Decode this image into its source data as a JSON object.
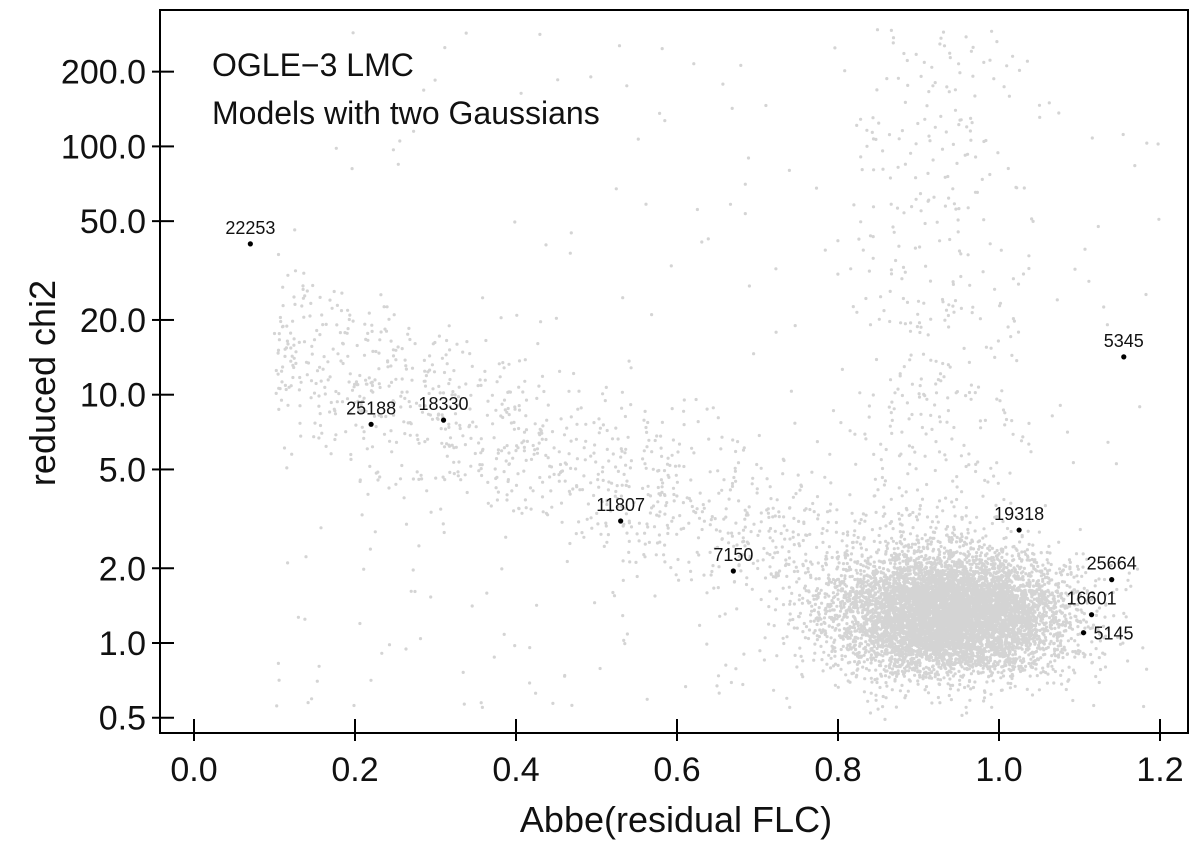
{
  "chart_data": {
    "type": "scatter",
    "title": "",
    "annotations": [
      "OGLE−3 LMC",
      "Models with two Gaussians"
    ],
    "xlabel": "Abbe(residual FLC)",
    "ylabel": "reduced chi2",
    "xlim": [
      -0.05,
      1.25
    ],
    "ylim": [
      0.45,
      400
    ],
    "yscale": "log",
    "xticks": [
      0.0,
      0.2,
      0.4,
      0.6,
      0.8,
      1.0,
      1.2
    ],
    "xtick_labels": [
      "0.0",
      "0.2",
      "0.4",
      "0.6",
      "0.8",
      "1.0",
      "1.2"
    ],
    "yticks": [
      0.5,
      1.0,
      2.0,
      5.0,
      10.0,
      20.0,
      50.0,
      100.0,
      200.0
    ],
    "ytick_labels": [
      "0.5",
      "1.0",
      "2.0",
      "5.0",
      "10.0",
      "20.0",
      "50.0",
      "100.0",
      "200.0"
    ],
    "grid": false,
    "colors": {
      "highlight": "#000000",
      "cloud": "#3a3a3a"
    },
    "highlighted_points": [
      {
        "label": "22253",
        "x": 0.07,
        "y": 40.5
      },
      {
        "label": "25188",
        "x": 0.22,
        "y": 7.6
      },
      {
        "label": "18330",
        "x": 0.31,
        "y": 7.9
      },
      {
        "label": "11807",
        "x": 0.53,
        "y": 3.1
      },
      {
        "label": "7150",
        "x": 0.67,
        "y": 1.95
      },
      {
        "label": "19318",
        "x": 1.025,
        "y": 2.85
      },
      {
        "label": "5345",
        "x": 1.155,
        "y": 14.2
      },
      {
        "label": "25664",
        "x": 1.14,
        "y": 1.8
      },
      {
        "label": "16601",
        "x": 1.115,
        "y": 1.3
      },
      {
        "label": "5145",
        "x": 1.105,
        "y": 1.1
      }
    ],
    "point_cloud": {
      "description_components": [
        {
          "x_center": 0.94,
          "x_spread": 0.07,
          "y_center": 1.3,
          "y_log_spread": 0.12,
          "weight": 0.78
        },
        {
          "x_from": 0.1,
          "x_to": 0.9,
          "y_at_x_from": 15.0,
          "y_at_x_to": 1.5,
          "y_log_spread": 0.18,
          "weight": 0.12
        },
        {
          "x_center": 0.93,
          "x_spread": 0.06,
          "y_min": 1.5,
          "y_max": 300,
          "weight": 0.07
        },
        {
          "x_from": 0.1,
          "x_to": 1.2,
          "y_min": 0.55,
          "y_max": 300,
          "weight": 0.03
        }
      ]
    }
  }
}
